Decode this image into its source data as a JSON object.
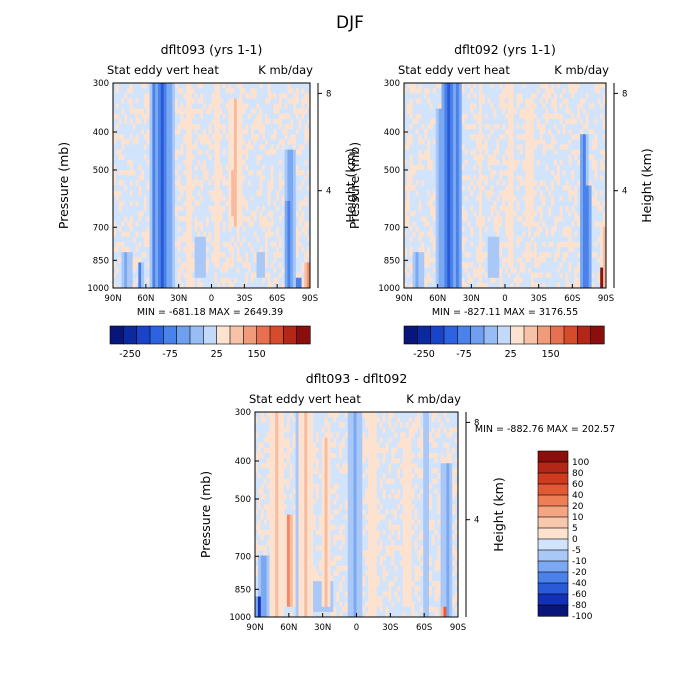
{
  "figure_title": "DJF",
  "chart_data": [
    {
      "type": "heatmap",
      "title": "dflt093 (yrs 1-1)",
      "left_string": "Stat eddy vert heat",
      "right_string": "K mb/day",
      "ylabel": "Pressure (mb)",
      "y2label": "Height (km)",
      "x_ticks": [
        "90N",
        "60N",
        "30N",
        "0",
        "30S",
        "60S",
        "90S"
      ],
      "y_ticks": [
        "300",
        "400",
        "500",
        "700",
        "850",
        "1000"
      ],
      "y2_ticks": [
        "8",
        "4"
      ],
      "min_max": "MIN = -681.18   MAX = 2649.39",
      "colorbar": {
        "orientation": "horizontal",
        "labels": [
          "-250",
          "-75",
          "25",
          "150"
        ]
      },
      "features": [
        {
          "lat": 45,
          "width": 6,
          "plo": 300,
          "phi": 1000,
          "v": -4
        },
        {
          "lat": 52,
          "width": 4,
          "plo": 300,
          "phi": 1000,
          "v": -3
        },
        {
          "lat": 38,
          "width": 4,
          "plo": 300,
          "phi": 1000,
          "v": -2
        },
        {
          "lat": 78,
          "width": 5,
          "plo": 800,
          "phi": 1000,
          "v": -2
        },
        {
          "lat": 65,
          "width": 3,
          "plo": 850,
          "phi": 1000,
          "v": -3
        },
        {
          "lat": 20,
          "width": 4,
          "plo": 300,
          "phi": 1000,
          "v": 1
        },
        {
          "lat": -22,
          "width": 6,
          "plo": 330,
          "phi": 700,
          "v": 2
        },
        {
          "lat": -20,
          "width": 3,
          "plo": 500,
          "phi": 650,
          "v": 3
        },
        {
          "lat": -5,
          "width": 3,
          "plo": 300,
          "phi": 900,
          "v": 1
        },
        {
          "lat": -72,
          "width": 4,
          "plo": 450,
          "phi": 1000,
          "v": -3
        },
        {
          "lat": -70,
          "width": 3,
          "plo": 600,
          "phi": 1000,
          "v": -4
        },
        {
          "lat": -80,
          "width": 2,
          "plo": 950,
          "phi": 1000,
          "v": -6
        },
        {
          "lat": -88,
          "width": 2,
          "plo": 850,
          "phi": 1000,
          "v": 5
        },
        {
          "lat": 10,
          "width": 10,
          "plo": 750,
          "phi": 950,
          "v": -1
        },
        {
          "lat": -45,
          "width": 8,
          "plo": 800,
          "phi": 950,
          "v": -1
        }
      ]
    },
    {
      "type": "heatmap",
      "title": "dflt092 (yrs 1-1)",
      "left_string": "Stat eddy vert heat",
      "right_string": "K mb/day",
      "ylabel": "Pressure (mb)",
      "y2label": "Height (km)",
      "x_ticks": [
        "90N",
        "60N",
        "30N",
        "0",
        "30S",
        "60S",
        "90S"
      ],
      "y_ticks": [
        "300",
        "400",
        "500",
        "700",
        "850",
        "1000"
      ],
      "y2_ticks": [
        "8",
        "4"
      ],
      "min_max": "MIN = -827.11   MAX = 3176.55",
      "colorbar": {
        "orientation": "horizontal",
        "labels": [
          "-250",
          "-75",
          "25",
          "150"
        ]
      },
      "features": [
        {
          "lat": 50,
          "width": 7,
          "plo": 300,
          "phi": 1000,
          "v": -4
        },
        {
          "lat": 42,
          "width": 4,
          "plo": 300,
          "phi": 1000,
          "v": -3
        },
        {
          "lat": 58,
          "width": 4,
          "plo": 350,
          "phi": 1000,
          "v": -2
        },
        {
          "lat": 78,
          "width": 5,
          "plo": 800,
          "phi": 1000,
          "v": -2
        },
        {
          "lat": 22,
          "width": 4,
          "plo": 300,
          "phi": 1000,
          "v": 1
        },
        {
          "lat": -22,
          "width": 6,
          "plo": 330,
          "phi": 700,
          "v": 1
        },
        {
          "lat": -5,
          "width": 3,
          "plo": 300,
          "phi": 900,
          "v": 1
        },
        {
          "lat": -70,
          "width": 4,
          "plo": 400,
          "phi": 1000,
          "v": -3
        },
        {
          "lat": -74,
          "width": 3,
          "plo": 550,
          "phi": 1000,
          "v": -4
        },
        {
          "lat": -88,
          "width": 2,
          "plo": 700,
          "phi": 1000,
          "v": 3
        },
        {
          "lat": -86,
          "width": 2,
          "plo": 880,
          "phi": 1000,
          "v": 6
        },
        {
          "lat": 10,
          "width": 10,
          "plo": 750,
          "phi": 950,
          "v": -1
        }
      ]
    },
    {
      "type": "heatmap",
      "title": "dflt093 - dflt092",
      "left_string": "Stat eddy vert heat",
      "right_string": "K mb/day",
      "ylabel": "Pressure (mb)",
      "y2label": "Height (km)",
      "x_ticks": [
        "90N",
        "60N",
        "30N",
        "0",
        "30S",
        "60S",
        "90S"
      ],
      "y_ticks": [
        "300",
        "400",
        "500",
        "700",
        "850",
        "1000"
      ],
      "y2_ticks": [
        "8",
        "4"
      ],
      "min_max": "MIN = -882.76   MAX = 202.57",
      "colorbar": {
        "orientation": "vertical",
        "labels": [
          "100",
          "80",
          "60",
          "40",
          "20",
          "10",
          "5",
          "0",
          "-5",
          "-10",
          "-20",
          "-40",
          "-60",
          "-80",
          "-100"
        ]
      },
      "features": [
        {
          "lat": 70,
          "width": 6,
          "plo": 300,
          "phi": 1000,
          "v": 2
        },
        {
          "lat": 60,
          "width": 5,
          "plo": 550,
          "phi": 950,
          "v": 3
        },
        {
          "lat": 45,
          "width": 6,
          "plo": 300,
          "phi": 1000,
          "v": 2
        },
        {
          "lat": 28,
          "width": 4,
          "plo": 350,
          "phi": 950,
          "v": 2
        },
        {
          "lat": 52,
          "width": 3,
          "plo": 300,
          "phi": 1000,
          "v": -1
        },
        {
          "lat": 82,
          "width": 5,
          "plo": 700,
          "phi": 1000,
          "v": -3
        },
        {
          "lat": 86,
          "width": 3,
          "plo": 900,
          "phi": 1000,
          "v": -5
        },
        {
          "lat": 2,
          "width": 6,
          "plo": 300,
          "phi": 1000,
          "v": -2
        },
        {
          "lat": -15,
          "width": 6,
          "plo": 300,
          "phi": 1000,
          "v": 1
        },
        {
          "lat": -45,
          "width": 6,
          "plo": 350,
          "phi": 950,
          "v": 1
        },
        {
          "lat": -62,
          "width": 3,
          "plo": 300,
          "phi": 1000,
          "v": -1
        },
        {
          "lat": -80,
          "width": 5,
          "plo": 400,
          "phi": 1000,
          "v": -2
        },
        {
          "lat": -78,
          "width": 3,
          "plo": 950,
          "phi": 1000,
          "v": 4
        },
        {
          "lat": 30,
          "width": 15,
          "plo": 820,
          "phi": 960,
          "v": -1
        }
      ]
    }
  ],
  "colors": {
    "-6": "#081d8a",
    "-5": "#1330b8",
    "-4": "#2a5ad8",
    "-3": "#4a82ea",
    "-2": "#7aa8f2",
    "-1": "#a9c8f7",
    "0": "#d2e4fb",
    "1": "#fde2cf",
    "2": "#f7bb9f",
    "3": "#ee8a6a",
    "4": "#e35a3c",
    "5": "#c23320",
    "6": "#8a1210"
  },
  "colorbar_colors": [
    "#08167a",
    "#0c2aa0",
    "#1a44c8",
    "#2d62e0",
    "#4a82ea",
    "#6fa0f0",
    "#98bdf5",
    "#c3d9f9",
    "#fde2cf",
    "#f7c2a6",
    "#f09b7a",
    "#e6704f",
    "#d64b2c",
    "#b32718",
    "#8a0f0c"
  ],
  "colorbar_colors_v": [
    "#8a0f0c",
    "#b32718",
    "#cf3a20",
    "#e25a35",
    "#ee7e55",
    "#f5a582",
    "#f9c7ab",
    "#fde2cf",
    "#d2e4fb",
    "#a9c8f7",
    "#7aa8f2",
    "#4a82ea",
    "#2a5ad8",
    "#1330b8",
    "#08167a"
  ]
}
